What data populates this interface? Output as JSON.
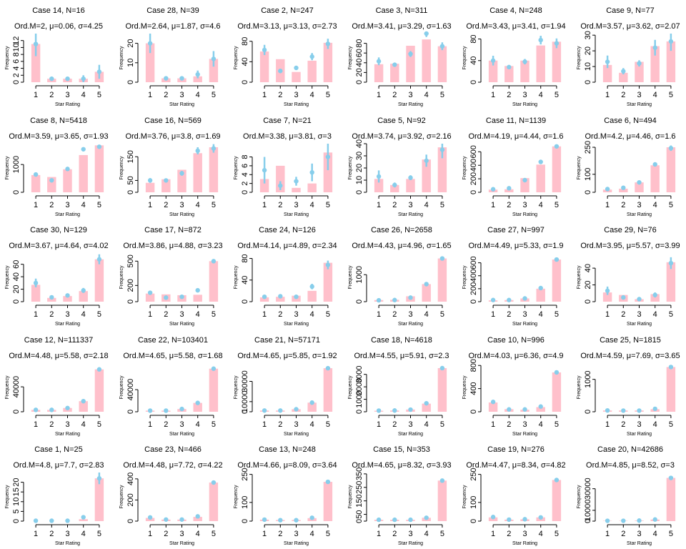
{
  "colors": {
    "bar": "#ffc0cb",
    "marker": "#87ceeb",
    "axis": "#000000"
  },
  "chart_data": [
    {
      "type": "bar",
      "title": "Case 14, N=16",
      "subtitle": "Ord.M=2, μ=0.06, σ=4.25",
      "xlabel": "Star Rating",
      "ylabel": "Frequency",
      "categories": [
        "1",
        "2",
        "3",
        "4",
        "5"
      ],
      "values": [
        11,
        1,
        1,
        1,
        3
      ],
      "estimates": [
        11,
        1,
        1,
        1,
        3
      ],
      "errors": [
        3.5,
        0.6,
        0.6,
        1,
        2
      ],
      "ylim": [
        0,
        14
      ],
      "yticks": [
        0,
        2,
        4,
        6,
        8,
        10,
        12
      ]
    },
    {
      "type": "bar",
      "title": "Case 28, N=39",
      "subtitle": "Ord.M=2.64, μ=1.87, σ=4.6",
      "xlabel": "Star Rating",
      "ylabel": "Frequency",
      "categories": [
        "1",
        "2",
        "3",
        "4",
        "5"
      ],
      "values": [
        20,
        2,
        2,
        3,
        12
      ],
      "estimates": [
        20,
        2,
        2,
        4,
        12
      ],
      "errors": [
        5,
        1,
        1,
        2,
        4
      ],
      "ylim": [
        0,
        25
      ],
      "yticks": [
        0,
        10,
        20
      ]
    },
    {
      "type": "bar",
      "title": "Case 2, N=247",
      "subtitle": "Ord.M=3.13, μ=3.13, σ=2.73",
      "xlabel": "Star Rating",
      "ylabel": "Frequency",
      "categories": [
        "1",
        "2",
        "3",
        "4",
        "5"
      ],
      "values": [
        60,
        45,
        20,
        42,
        77
      ],
      "estimates": [
        63,
        22,
        28,
        50,
        75
      ],
      "errors": [
        10,
        4,
        4,
        7,
        10
      ],
      "ylim": [
        0,
        95
      ],
      "yticks": [
        0,
        40,
        80
      ]
    },
    {
      "type": "bar",
      "title": "Case 3, N=311",
      "subtitle": "Ord.M=3.41, μ=3.29, σ=1.63",
      "xlabel": "Star Rating",
      "ylabel": "Frequency",
      "categories": [
        "1",
        "2",
        "3",
        "4",
        "5"
      ],
      "values": [
        37,
        38,
        75,
        88,
        74
      ],
      "estimates": [
        43,
        36,
        58,
        100,
        74
      ],
      "errors": [
        8,
        3,
        6,
        7,
        8
      ],
      "ylim": [
        0,
        100
      ],
      "yticks": [
        0,
        20,
        40,
        60,
        80
      ]
    },
    {
      "type": "bar",
      "title": "Case 4, N=248",
      "subtitle": "Ord.M=3.43, μ=3.41, σ=1.94",
      "xlabel": "Star Rating",
      "ylabel": "Frequency",
      "categories": [
        "1",
        "2",
        "3",
        "4",
        "5"
      ],
      "values": [
        40,
        30,
        40,
        68,
        75
      ],
      "estimates": [
        40,
        28,
        38,
        78,
        72
      ],
      "errors": [
        9,
        3,
        5,
        8,
        9
      ],
      "ylim": [
        0,
        90
      ],
      "yticks": [
        0,
        40,
        80
      ]
    },
    {
      "type": "bar",
      "title": "Case 9, N=77",
      "subtitle": "Ord.M=3.57, μ=3.62, σ=2.07",
      "xlabel": "Star Rating",
      "ylabel": "Frequency",
      "categories": [
        "1",
        "2",
        "3",
        "4",
        "5"
      ],
      "values": [
        11,
        6,
        13,
        23,
        26
      ],
      "estimates": [
        13,
        7,
        12,
        22,
        26
      ],
      "errors": [
        4,
        2,
        2,
        5,
        6
      ],
      "ylim": [
        0,
        31
      ],
      "yticks": [
        0,
        10,
        20,
        30
      ]
    },
    {
      "type": "bar",
      "title": "Case 8, N=5418",
      "subtitle": "Ord.M=3.59, μ=3.65, σ=1.93",
      "xlabel": "Star Rating",
      "ylabel": "Frequency",
      "categories": [
        "1",
        "2",
        "3",
        "4",
        "5"
      ],
      "values": [
        620,
        550,
        830,
        1340,
        1690
      ],
      "estimates": [
        640,
        430,
        840,
        1550,
        1640
      ],
      "errors": [
        40,
        30,
        40,
        50,
        50
      ],
      "ylim": [
        0,
        1750
      ],
      "yticks": [
        0,
        1000
      ]
    },
    {
      "type": "bar",
      "title": "Case 16, N=569",
      "subtitle": "Ord.M=3.76, μ=3.8, σ=1.69",
      "xlabel": "Star Rating",
      "ylabel": "Frequency",
      "categories": [
        "1",
        "2",
        "3",
        "4",
        "5"
      ],
      "values": [
        40,
        55,
        95,
        165,
        190
      ],
      "estimates": [
        50,
        50,
        80,
        175,
        185
      ],
      "errors": [
        10,
        8,
        10,
        15,
        18
      ],
      "ylim": [
        0,
        205
      ],
      "yticks": [
        0,
        50,
        150
      ]
    },
    {
      "type": "bar",
      "title": "Case 7, N=21",
      "subtitle": "Ord.M=3.38, μ=3.81, σ=3",
      "xlabel": "Star Rating",
      "ylabel": "Frequency",
      "categories": [
        "1",
        "2",
        "3",
        "4",
        "5"
      ],
      "values": [
        3,
        6,
        1,
        2,
        9
      ],
      "estimates": [
        5,
        1.5,
        2.5,
        4.5,
        8
      ],
      "errors": [
        3,
        1,
        1,
        2,
        3
      ],
      "ylim": [
        0,
        11
      ],
      "yticks": [
        0,
        2,
        4,
        6,
        8
      ]
    },
    {
      "type": "bar",
      "title": "Case 5, N=92",
      "subtitle": "Ord.M=3.74, μ=3.92, σ=2.16",
      "xlabel": "Star Rating",
      "ylabel": "Frequency",
      "categories": [
        "1",
        "2",
        "3",
        "4",
        "5"
      ],
      "values": [
        11,
        6,
        11,
        27,
        37
      ],
      "estimates": [
        13,
        6,
        12,
        26,
        35
      ],
      "errors": [
        5,
        2,
        2,
        5,
        7
      ],
      "ylim": [
        0,
        40
      ],
      "yticks": [
        0,
        10,
        20,
        30,
        40
      ]
    },
    {
      "type": "bar",
      "title": "Case 11, N=1139",
      "subtitle": "Ord.M=4.19, μ=4.44, σ=1.6",
      "xlabel": "Star Rating",
      "ylabel": "Frequency",
      "categories": [
        "1",
        "2",
        "3",
        "4",
        "5"
      ],
      "values": [
        40,
        45,
        210,
        410,
        680
      ],
      "estimates": [
        45,
        60,
        180,
        450,
        680
      ],
      "errors": [
        15,
        15,
        20,
        25,
        20
      ],
      "ylim": [
        0,
        720
      ],
      "yticks": [
        0,
        200,
        400,
        600
      ]
    },
    {
      "type": "bar",
      "title": "Case 6, N=494",
      "subtitle": "Ord.M=4.2, μ=4.46, σ=1.6",
      "xlabel": "Star Rating",
      "ylabel": "Frequency",
      "categories": [
        "1",
        "2",
        "3",
        "4",
        "5"
      ],
      "values": [
        15,
        20,
        55,
        150,
        250
      ],
      "estimates": [
        18,
        25,
        55,
        155,
        245
      ],
      "errors": [
        5,
        5,
        7,
        10,
        15
      ],
      "ylim": [
        0,
        270
      ],
      "yticks": [
        0,
        100,
        250
      ]
    },
    {
      "type": "bar",
      "title": "Case 30, N=129",
      "subtitle": "Ord.M=3.67, μ=4.64, σ=4.02",
      "xlabel": "Star Rating",
      "ylabel": "Frequency",
      "categories": [
        "1",
        "2",
        "3",
        "4",
        "5"
      ],
      "values": [
        27,
        6,
        9,
        17,
        68
      ],
      "estimates": [
        30,
        7,
        10,
        18,
        68
      ],
      "errors": [
        7,
        2,
        3,
        4,
        8
      ],
      "ylim": [
        0,
        78
      ],
      "yticks": [
        0,
        20,
        40,
        60
      ]
    },
    {
      "type": "bar",
      "title": "Case 17, N=872",
      "subtitle": "Ord.M=3.86, μ=4.88, σ=3.23",
      "xlabel": "Star Rating",
      "ylabel": "Frequency",
      "categories": [
        "1",
        "2",
        "3",
        "4",
        "5"
      ],
      "values": [
        100,
        90,
        80,
        85,
        500
      ],
      "estimates": [
        110,
        50,
        60,
        140,
        500
      ],
      "errors": [
        15,
        10,
        10,
        15,
        25
      ],
      "ylim": [
        0,
        600
      ],
      "yticks": [
        0,
        200,
        500
      ]
    },
    {
      "type": "bar",
      "title": "Case 24, N=126",
      "subtitle": "Ord.M=4.14, μ=4.89, σ=2.34",
      "xlabel": "Star Rating",
      "ylabel": "Frequency",
      "categories": [
        "1",
        "2",
        "3",
        "4",
        "5"
      ],
      "values": [
        8,
        9,
        11,
        20,
        72
      ],
      "estimates": [
        9,
        10,
        9,
        28,
        68
      ],
      "errors": [
        3,
        3,
        3,
        5,
        8
      ],
      "ylim": [
        0,
        90
      ],
      "yticks": [
        0,
        40,
        80
      ]
    },
    {
      "type": "bar",
      "title": "Case 26, N=2658",
      "subtitle": "Ord.M=4.43, μ=4.96, σ=1.65",
      "xlabel": "Star Rating",
      "ylabel": "Frequency",
      "categories": [
        "1",
        "2",
        "3",
        "4",
        "5"
      ],
      "values": [
        60,
        70,
        200,
        650,
        1600
      ],
      "estimates": [
        50,
        60,
        150,
        650,
        1600
      ],
      "errors": [
        15,
        15,
        20,
        35,
        50
      ],
      "ylim": [
        0,
        1800
      ],
      "yticks": [
        0,
        1000
      ]
    },
    {
      "type": "bar",
      "title": "Case 27, N=997",
      "subtitle": "Ord.M=4.49, μ=5.33, σ=1.9",
      "xlabel": "Star Rating",
      "ylabel": "Frequency",
      "categories": [
        "1",
        "2",
        "3",
        "4",
        "5"
      ],
      "values": [
        20,
        25,
        50,
        200,
        650
      ],
      "estimates": [
        25,
        25,
        50,
        210,
        650
      ],
      "errors": [
        5,
        5,
        6,
        15,
        20
      ],
      "ylim": [
        0,
        750
      ],
      "yticks": [
        0,
        200,
        400,
        600
      ]
    },
    {
      "type": "bar",
      "title": "Case 29, N=76",
      "subtitle": "Ord.M=3.95, μ=5.57, σ=3.99",
      "xlabel": "Star Rating",
      "ylabel": "Frequency",
      "categories": [
        "1",
        "2",
        "3",
        "4",
        "5"
      ],
      "values": [
        11,
        8,
        3,
        9,
        47
      ],
      "estimates": [
        13,
        5,
        3,
        8,
        46
      ],
      "errors": [
        5,
        2,
        1,
        3,
        7
      ],
      "ylim": [
        0,
        58
      ],
      "yticks": [
        0,
        20,
        40
      ]
    },
    {
      "type": "bar",
      "title": "Case 12, N=111337",
      "subtitle": "Ord.M=4.48, μ=5.58, σ=2.18",
      "xlabel": "Star Rating",
      "ylabel": "Frequency",
      "categories": [
        "1",
        "2",
        "3",
        "4",
        "5"
      ],
      "values": [
        3000,
        3000,
        6000,
        17000,
        68000
      ],
      "estimates": [
        3000,
        3000,
        6000,
        17000,
        68000
      ],
      "errors": [
        500,
        500,
        800,
        1500,
        2000
      ],
      "ylim": [
        0,
        78000
      ],
      "yticks": [
        0,
        40000
      ]
    },
    {
      "type": "bar",
      "title": "Case 22, N=103401",
      "subtitle": "Ord.M=4.65, μ=5.58, σ=1.68",
      "xlabel": "Star Rating",
      "ylabel": "Frequency",
      "categories": [
        "1",
        "2",
        "3",
        "4",
        "5"
      ],
      "values": [
        2000,
        2000,
        5000,
        16000,
        78000
      ],
      "estimates": [
        2000,
        2000,
        5000,
        16000,
        78000
      ],
      "errors": [
        500,
        500,
        800,
        1500,
        2000
      ],
      "ylim": [
        0,
        88000
      ],
      "yticks": [
        0,
        40000
      ]
    },
    {
      "type": "bar",
      "title": "Case 21, N=57171",
      "subtitle": "Ord.M=4.65, μ=5.85, σ=1.92",
      "xlabel": "Star Rating",
      "ylabel": "Frequency",
      "categories": [
        "1",
        "2",
        "3",
        "4",
        "5"
      ],
      "values": [
        1200,
        1200,
        2500,
        9000,
        43000
      ],
      "estimates": [
        1200,
        1200,
        2500,
        9000,
        43000
      ],
      "errors": [
        300,
        300,
        400,
        700,
        1200
      ],
      "ylim": [
        0,
        48000
      ],
      "yticks": [
        0,
        10000,
        30000
      ]
    },
    {
      "type": "bar",
      "title": "Case 18, N=4618",
      "subtitle": "Ord.M=4.55, μ=5.91, σ=2.3",
      "xlabel": "Star Rating",
      "ylabel": "Frequency",
      "categories": [
        "1",
        "2",
        "3",
        "4",
        "5"
      ],
      "values": [
        80,
        100,
        180,
        650,
        3500
      ],
      "estimates": [
        90,
        100,
        170,
        680,
        3500
      ],
      "errors": [
        20,
        20,
        30,
        60,
        80
      ],
      "ylim": [
        0,
        3900
      ],
      "yticks": [
        0,
        1000,
        2000,
        3000
      ]
    },
    {
      "type": "bar",
      "title": "Case 10, N=996",
      "subtitle": "Ord.M=4.03, μ=6.36, σ=4.9",
      "xlabel": "Star Rating",
      "ylabel": "Frequency",
      "categories": [
        "1",
        "2",
        "3",
        "4",
        "5"
      ],
      "values": [
        160,
        45,
        35,
        80,
        680
      ],
      "estimates": [
        170,
        40,
        40,
        90,
        680
      ],
      "errors": [
        15,
        8,
        8,
        12,
        20
      ],
      "ylim": [
        0,
        840
      ],
      "yticks": [
        0,
        400,
        800
      ]
    },
    {
      "type": "bar",
      "title": "Case 25, N=1815",
      "subtitle": "Ord.M=4.59, μ=7.69, σ=3.65",
      "xlabel": "Star Rating",
      "ylabel": "Frequency",
      "categories": [
        "1",
        "2",
        "3",
        "4",
        "5"
      ],
      "values": [
        40,
        40,
        40,
        80,
        1380
      ],
      "estimates": [
        40,
        35,
        35,
        90,
        1380
      ],
      "errors": [
        10,
        8,
        8,
        12,
        30
      ],
      "ylim": [
        0,
        1500
      ],
      "yticks": [
        0,
        1000
      ]
    },
    {
      "type": "bar",
      "title": "Case 1, N=25",
      "subtitle": "Ord.M=4.8, μ=7.7, σ=2.83",
      "xlabel": "Star Rating",
      "ylabel": "Frequency",
      "categories": [
        "1",
        "2",
        "3",
        "4",
        "5"
      ],
      "values": [
        0,
        0,
        0,
        1,
        22
      ],
      "estimates": [
        0.2,
        0.2,
        0.2,
        2,
        22
      ],
      "errors": [
        0.2,
        0.2,
        0.2,
        1,
        3
      ],
      "ylim": [
        0,
        25
      ],
      "yticks": [
        0,
        5,
        10,
        15,
        20
      ]
    },
    {
      "type": "bar",
      "title": "Case 23, N=466",
      "subtitle": "Ord.M=4.48, μ=7.72, σ=4.22",
      "xlabel": "Star Rating",
      "ylabel": "Frequency",
      "categories": [
        "1",
        "2",
        "3",
        "4",
        "5"
      ],
      "values": [
        30,
        15,
        15,
        40,
        365
      ],
      "estimates": [
        35,
        15,
        15,
        45,
        365
      ],
      "errors": [
        8,
        4,
        4,
        8,
        15
      ],
      "ylim": [
        0,
        460
      ],
      "yticks": [
        0,
        200,
        400
      ]
    },
    {
      "type": "bar",
      "title": "Case 13, N=248",
      "subtitle": "Ord.M=4.66, μ=8.09, σ=3.64",
      "xlabel": "Star Rating",
      "ylabel": "Frequency",
      "categories": [
        "1",
        "2",
        "3",
        "4",
        "5"
      ],
      "values": [
        8,
        6,
        6,
        16,
        210
      ],
      "estimates": [
        8,
        5,
        5,
        18,
        210
      ],
      "errors": [
        3,
        2,
        2,
        4,
        8
      ],
      "ylim": [
        0,
        260
      ],
      "yticks": [
        0,
        100,
        250
      ]
    },
    {
      "type": "bar",
      "title": "Case 15, N=353",
      "subtitle": "Ord.M=4.65, μ=8.32, σ=3.93",
      "xlabel": "Star Rating",
      "ylabel": "Frequency",
      "categories": [
        "1",
        "2",
        "3",
        "4",
        "5"
      ],
      "values": [
        10,
        10,
        10,
        25,
        300
      ],
      "estimates": [
        10,
        10,
        10,
        25,
        300
      ],
      "errors": [
        3,
        3,
        3,
        5,
        10
      ],
      "ylim": [
        0,
        360
      ],
      "yticks": [
        0,
        50,
        150,
        250,
        350
      ]
    },
    {
      "type": "bar",
      "title": "Case 19, N=276",
      "subtitle": "Ord.M=4.47, μ=8.34, σ=4.82",
      "xlabel": "Star Rating",
      "ylabel": "Frequency",
      "categories": [
        "1",
        "2",
        "3",
        "4",
        "5"
      ],
      "values": [
        20,
        8,
        10,
        20,
        220
      ],
      "estimates": [
        22,
        8,
        10,
        20,
        220
      ],
      "errors": [
        5,
        2,
        3,
        4,
        10
      ],
      "ylim": [
        0,
        260
      ],
      "yticks": [
        0,
        100,
        250
      ]
    },
    {
      "type": "bar",
      "title": "Case 20, N=42686",
      "subtitle": "Ord.M=4.85, μ=8.52, σ=3",
      "xlabel": "Star Rating",
      "ylabel": "Frequency",
      "categories": [
        "1",
        "2",
        "3",
        "4",
        "5"
      ],
      "values": [
        300,
        300,
        500,
        1500,
        40000
      ],
      "estimates": [
        300,
        300,
        500,
        1500,
        40000
      ],
      "errors": [
        100,
        100,
        100,
        300,
        700
      ],
      "ylim": [
        0,
        45000
      ],
      "yticks": [
        0,
        10000,
        30000
      ]
    }
  ]
}
